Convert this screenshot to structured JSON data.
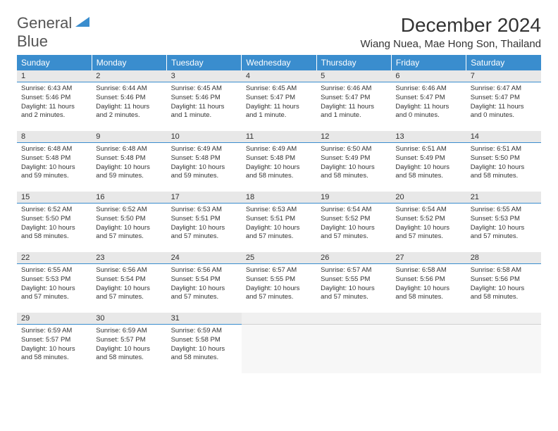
{
  "logo": {
    "text1": "General",
    "text2": "Blue"
  },
  "title": "December 2024",
  "location": "Wiang Nuea, Mae Hong Son, Thailand",
  "colors": {
    "header_bg": "#3a8dce",
    "header_text": "#ffffff",
    "daynum_bg": "#e8e8e8",
    "daynum_border": "#3a8dce",
    "body_bg": "#ffffff",
    "text": "#333333"
  },
  "weekdays": [
    "Sunday",
    "Monday",
    "Tuesday",
    "Wednesday",
    "Thursday",
    "Friday",
    "Saturday"
  ],
  "days": [
    {
      "n": "1",
      "sunrise": "6:43 AM",
      "sunset": "5:46 PM",
      "daylight": "11 hours and 2 minutes."
    },
    {
      "n": "2",
      "sunrise": "6:44 AM",
      "sunset": "5:46 PM",
      "daylight": "11 hours and 2 minutes."
    },
    {
      "n": "3",
      "sunrise": "6:45 AM",
      "sunset": "5:46 PM",
      "daylight": "11 hours and 1 minute."
    },
    {
      "n": "4",
      "sunrise": "6:45 AM",
      "sunset": "5:47 PM",
      "daylight": "11 hours and 1 minute."
    },
    {
      "n": "5",
      "sunrise": "6:46 AM",
      "sunset": "5:47 PM",
      "daylight": "11 hours and 1 minute."
    },
    {
      "n": "6",
      "sunrise": "6:46 AM",
      "sunset": "5:47 PM",
      "daylight": "11 hours and 0 minutes."
    },
    {
      "n": "7",
      "sunrise": "6:47 AM",
      "sunset": "5:47 PM",
      "daylight": "11 hours and 0 minutes."
    },
    {
      "n": "8",
      "sunrise": "6:48 AM",
      "sunset": "5:48 PM",
      "daylight": "10 hours and 59 minutes."
    },
    {
      "n": "9",
      "sunrise": "6:48 AM",
      "sunset": "5:48 PM",
      "daylight": "10 hours and 59 minutes."
    },
    {
      "n": "10",
      "sunrise": "6:49 AM",
      "sunset": "5:48 PM",
      "daylight": "10 hours and 59 minutes."
    },
    {
      "n": "11",
      "sunrise": "6:49 AM",
      "sunset": "5:48 PM",
      "daylight": "10 hours and 58 minutes."
    },
    {
      "n": "12",
      "sunrise": "6:50 AM",
      "sunset": "5:49 PM",
      "daylight": "10 hours and 58 minutes."
    },
    {
      "n": "13",
      "sunrise": "6:51 AM",
      "sunset": "5:49 PM",
      "daylight": "10 hours and 58 minutes."
    },
    {
      "n": "14",
      "sunrise": "6:51 AM",
      "sunset": "5:50 PM",
      "daylight": "10 hours and 58 minutes."
    },
    {
      "n": "15",
      "sunrise": "6:52 AM",
      "sunset": "5:50 PM",
      "daylight": "10 hours and 58 minutes."
    },
    {
      "n": "16",
      "sunrise": "6:52 AM",
      "sunset": "5:50 PM",
      "daylight": "10 hours and 57 minutes."
    },
    {
      "n": "17",
      "sunrise": "6:53 AM",
      "sunset": "5:51 PM",
      "daylight": "10 hours and 57 minutes."
    },
    {
      "n": "18",
      "sunrise": "6:53 AM",
      "sunset": "5:51 PM",
      "daylight": "10 hours and 57 minutes."
    },
    {
      "n": "19",
      "sunrise": "6:54 AM",
      "sunset": "5:52 PM",
      "daylight": "10 hours and 57 minutes."
    },
    {
      "n": "20",
      "sunrise": "6:54 AM",
      "sunset": "5:52 PM",
      "daylight": "10 hours and 57 minutes."
    },
    {
      "n": "21",
      "sunrise": "6:55 AM",
      "sunset": "5:53 PM",
      "daylight": "10 hours and 57 minutes."
    },
    {
      "n": "22",
      "sunrise": "6:55 AM",
      "sunset": "5:53 PM",
      "daylight": "10 hours and 57 minutes."
    },
    {
      "n": "23",
      "sunrise": "6:56 AM",
      "sunset": "5:54 PM",
      "daylight": "10 hours and 57 minutes."
    },
    {
      "n": "24",
      "sunrise": "6:56 AM",
      "sunset": "5:54 PM",
      "daylight": "10 hours and 57 minutes."
    },
    {
      "n": "25",
      "sunrise": "6:57 AM",
      "sunset": "5:55 PM",
      "daylight": "10 hours and 57 minutes."
    },
    {
      "n": "26",
      "sunrise": "6:57 AM",
      "sunset": "5:55 PM",
      "daylight": "10 hours and 57 minutes."
    },
    {
      "n": "27",
      "sunrise": "6:58 AM",
      "sunset": "5:56 PM",
      "daylight": "10 hours and 58 minutes."
    },
    {
      "n": "28",
      "sunrise": "6:58 AM",
      "sunset": "5:56 PM",
      "daylight": "10 hours and 58 minutes."
    },
    {
      "n": "29",
      "sunrise": "6:59 AM",
      "sunset": "5:57 PM",
      "daylight": "10 hours and 58 minutes."
    },
    {
      "n": "30",
      "sunrise": "6:59 AM",
      "sunset": "5:57 PM",
      "daylight": "10 hours and 58 minutes."
    },
    {
      "n": "31",
      "sunrise": "6:59 AM",
      "sunset": "5:58 PM",
      "daylight": "10 hours and 58 minutes."
    }
  ],
  "labels": {
    "sunrise": "Sunrise:",
    "sunset": "Sunset:",
    "daylight": "Daylight:"
  }
}
